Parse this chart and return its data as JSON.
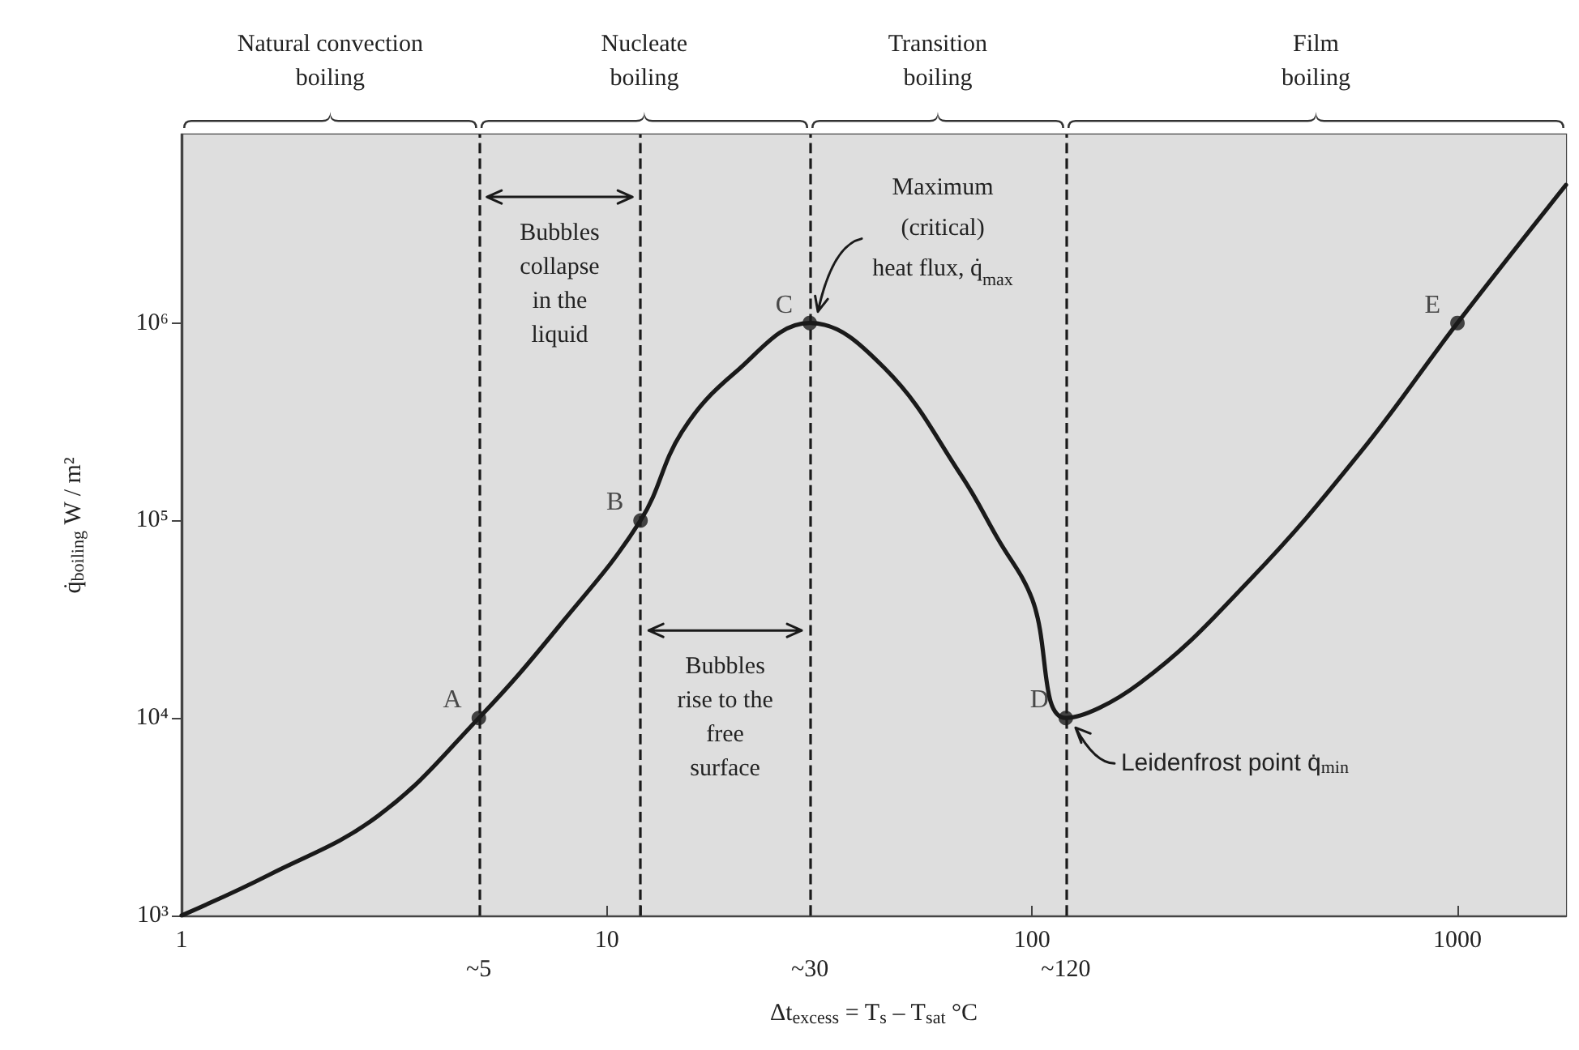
{
  "chart_data": {
    "type": "line",
    "xlabel": "Δt$_{excess}$ = T$_{s}$ – T$_{sat}$ °C",
    "ylabel": "q̇$_{boiling}$ W / m²",
    "log": "xy",
    "xlim": [
      1,
      1800
    ],
    "ylim": [
      1000,
      9000000
    ],
    "xticks": [
      1,
      10,
      {
        "value": 12,
        "label": null
      },
      100,
      1000
    ],
    "yticks": [
      {
        "value": 1000,
        "label": "10³"
      },
      {
        "value": 10000,
        "label": "10⁴"
      },
      {
        "value": 100000,
        "label": "10⁵"
      },
      {
        "value": 1000000,
        "label": "10⁶"
      }
    ],
    "series": [
      {
        "color": "#1a1a1a",
        "x": [
          1,
          1.6,
          2.9,
          5,
          7.7,
          12,
          15,
          20,
          30,
          45,
          68,
          83,
          100,
          120,
          179,
          325,
          590,
          1000,
          1800
        ],
        "values": [
          1000,
          1600,
          3200,
          10000,
          29000,
          100000,
          280000,
          560000,
          1000000,
          590000,
          170000,
          81000,
          40000,
          10000,
          15000,
          50000,
          220000,
          1000000,
          5000000
        ]
      },
      {
        "type": "scatter",
        "color": "#1a1a1a",
        "x": [
          5,
          12,
          30,
          120,
          1000
        ],
        "values": [
          10000,
          100000,
          1000000,
          10000,
          1000000
        ],
        "value_labels": [
          "A",
          "B",
          "C",
          "D",
          "E"
        ]
      }
    ],
    "ref_lines": [
      {
        "axis": "x",
        "value": 5,
        "label": "~5",
        "color": "#1a1a1a",
        "line_style": "dashed"
      },
      {
        "axis": "x",
        "value": 12,
        "color": "#1a1a1a",
        "line_style": "dashed"
      },
      {
        "axis": "x",
        "value": 30,
        "label": "~30",
        "color": "#1a1a1a",
        "line_style": "dashed"
      },
      {
        "axis": "x",
        "value": 120,
        "label": "~120",
        "color": "#1a1a1a",
        "line_style": "dashed"
      }
    ],
    "bands": [
      {
        "axis": "x",
        "from": 1,
        "to": 5,
        "label": "Natural convection\nboiling",
        "color": "#dedede"
      },
      {
        "axis": "x",
        "from": 5,
        "to": 30,
        "label": "Nucleate\nboiling",
        "color": "#dedede"
      },
      {
        "axis": "x",
        "from": 30,
        "to": 120,
        "label": "Transition\nboiling",
        "color": "#dedede"
      },
      {
        "axis": "x",
        "from": 120,
        "to": 1800,
        "label": "Film\nboiling",
        "color": "#dedede"
      }
    ],
    "annotations": [
      "Bubbles\ncollapse\nin the\nliquid",
      "Bubbles\nrise to the\nfree\nsurface",
      {
        "text": "Maximum\n(critical)\nheat flux, q̇$_{max}$",
        "x": 30,
        "y": 1000000
      },
      {
        "text": "Leidenfrost point q̇$_{min}$",
        "x": 120,
        "y": 10000
      }
    ]
  }
}
